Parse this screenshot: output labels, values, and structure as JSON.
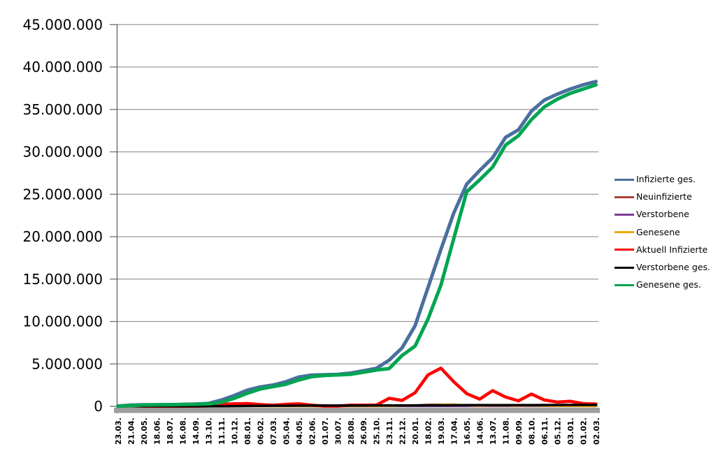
{
  "chart_data": {
    "type": "line",
    "title": "",
    "xlabel": "",
    "ylabel": "",
    "ylim": [
      0,
      45000000
    ],
    "y_tick_interval": 5000000,
    "y_tick_labels": [
      "45.000.000",
      "40.000.000",
      "35.000.000",
      "30.000.000",
      "25.000.000",
      "20.000.000",
      "15.000.000",
      "10.000.000",
      "5.000.000",
      "0"
    ],
    "grid": true,
    "legend_position": "right",
    "categories": [
      "23.03.",
      "21.04.",
      "20.05.",
      "18.06.",
      "18.07.",
      "16.08.",
      "14.09.",
      "13.10.",
      "11.11.",
      "10.12.",
      "08.01.",
      "06.02.",
      "07.03.",
      "05.04.",
      "04.05.",
      "02.06.",
      "01.07.",
      "30.07.",
      "28.08.",
      "26.09.",
      "25.10.",
      "23.11.",
      "22.12.",
      "20.01.",
      "18.02.",
      "19.03.",
      "17.04.",
      "16.05.",
      "14.06.",
      "13.07.",
      "11.08.",
      "09.09.",
      "08.10.",
      "06.11.",
      "05.12.",
      "03.01.",
      "01.02.",
      "02.03."
    ],
    "series": [
      {
        "name": "Infizierte ges.",
        "color": "#4a6f9f",
        "line_width": 5,
        "values": [
          30000,
          150000,
          180000,
          190000,
          200000,
          230000,
          260000,
          340000,
          730000,
          1270000,
          1900000,
          2280000,
          2510000,
          2890000,
          3450000,
          3690000,
          3730000,
          3770000,
          3920000,
          4190000,
          4480000,
          5450000,
          6900000,
          9500000,
          14000000,
          18500000,
          22800000,
          26200000,
          27800000,
          29300000,
          31700000,
          32600000,
          34800000,
          36100000,
          36800000,
          37400000,
          37900000,
          38300000
        ]
      },
      {
        "name": "Neuinfizierte",
        "color": "#a6453e",
        "line_width": 2.5,
        "values": [
          4000,
          2000,
          1000,
          500,
          500,
          1000,
          2000,
          5000,
          20000,
          25000,
          20000,
          10000,
          8000,
          18000,
          15000,
          4000,
          1000,
          2000,
          10000,
          7000,
          15000,
          60000,
          40000,
          130000,
          210000,
          250000,
          150000,
          60000,
          70000,
          110000,
          45000,
          35000,
          100000,
          40000,
          30000,
          25000,
          15000,
          10000
        ]
      },
      {
        "name": "Verstorbene",
        "color": "#7d3c96",
        "line_width": 2.5,
        "values": [
          100,
          300,
          100,
          100,
          100,
          100,
          100,
          100,
          200,
          500,
          900,
          600,
          300,
          200,
          200,
          100,
          100,
          100,
          100,
          100,
          100,
          200,
          400,
          300,
          200,
          300,
          300,
          200,
          100,
          100,
          100,
          100,
          200,
          200,
          200,
          200,
          100,
          100
        ]
      },
      {
        "name": "Genesene",
        "color": "#efa80a",
        "line_width": 2.8,
        "values": [
          2000,
          3000,
          2000,
          500,
          400,
          1000,
          1000,
          3000,
          12000,
          22000,
          25000,
          14000,
          7000,
          12000,
          19000,
          8000,
          2000,
          1000,
          7000,
          8000,
          10000,
          35000,
          50000,
          90000,
          150000,
          220000,
          250000,
          110000,
          60000,
          90000,
          80000,
          50000,
          80000,
          60000,
          35000,
          30000,
          20000,
          12000
        ]
      },
      {
        "name": "Aktuell Infizierte",
        "color": "#ff0000",
        "line_width": 4.5,
        "values": [
          25000,
          50000,
          15000,
          7000,
          7000,
          13000,
          20000,
          50000,
          240000,
          300000,
          330000,
          210000,
          130000,
          240000,
          300000,
          130000,
          35000,
          30000,
          130000,
          140000,
          150000,
          950000,
          700000,
          1600000,
          3700000,
          4500000,
          2900000,
          1500000,
          850000,
          1850000,
          1100000,
          650000,
          1450000,
          750000,
          500000,
          600000,
          320000,
          280000
        ]
      },
      {
        "name": "Verstorbene ges.",
        "color": "#000000",
        "line_width": 3.5,
        "values": [
          200,
          5000,
          8000,
          9000,
          9000,
          9300,
          9400,
          10000,
          12000,
          20000,
          39000,
          61000,
          72000,
          77000,
          84000,
          89000,
          91000,
          92000,
          92200,
          93000,
          95000,
          100000,
          109000,
          116000,
          121000,
          127000,
          133000,
          138000,
          140000,
          142000,
          145000,
          148000,
          151000,
          154000,
          158000,
          162000,
          166000,
          168000
        ]
      },
      {
        "name": "Genesene ges.",
        "color": "#00a551",
        "line_width": 5,
        "values": [
          10000,
          80000,
          160000,
          175000,
          190000,
          210000,
          240000,
          290000,
          470000,
          950000,
          1530000,
          2040000,
          2320000,
          2600000,
          3100000,
          3500000,
          3640000,
          3700000,
          3780000,
          4020000,
          4280000,
          4450000,
          6000000,
          7100000,
          10300000,
          14300000,
          19800000,
          25300000,
          26700000,
          28200000,
          30800000,
          31900000,
          33800000,
          35300000,
          36200000,
          36900000,
          37400000,
          37900000
        ]
      }
    ]
  },
  "colors": {
    "grid": "#9a9a9a",
    "axis": "#6f6f6f",
    "baseline_bar": "#9d9d9d",
    "background": "#ffffff",
    "text": "#000000"
  }
}
